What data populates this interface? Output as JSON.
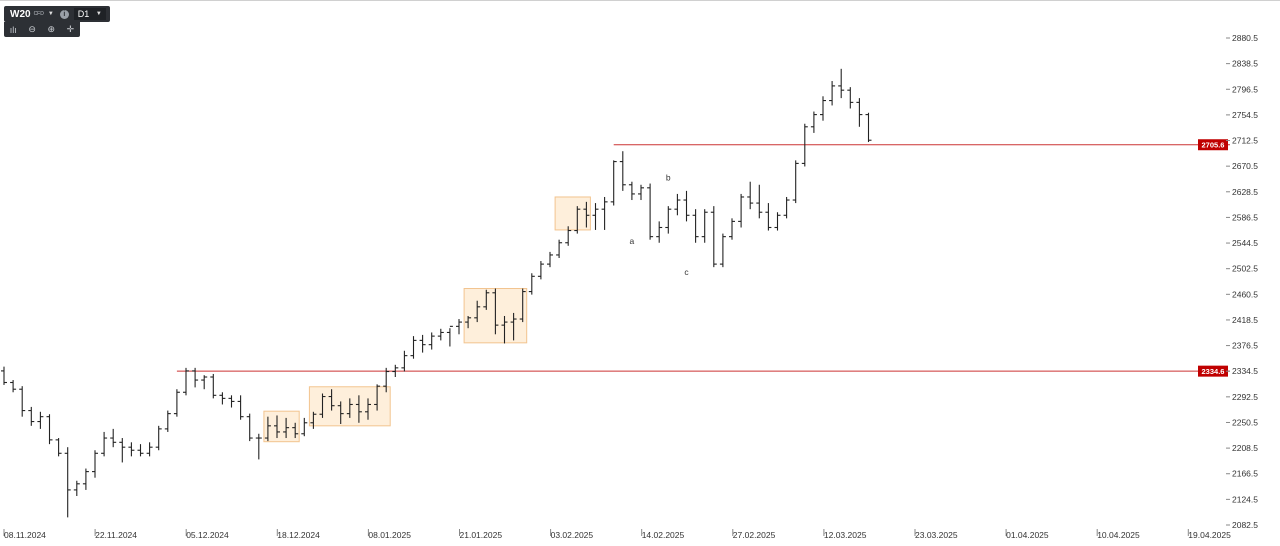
{
  "toolbar": {
    "symbol": "W20",
    "symbol_type": "CFD",
    "timeframe": "D1",
    "icons": [
      "caret-down-icon",
      "info-icon",
      "bar-style-icon",
      "zoom-out-icon",
      "zoom-in-icon",
      "crosshair-icon"
    ]
  },
  "colors": {
    "bar": "#222222",
    "level_line": "#cc3333",
    "level_badge": "#c00000",
    "box_fill": "#fde9cf",
    "box_stroke": "#f2c48f",
    "axis_text": "#333333"
  },
  "chart_data": {
    "type": "ohlc",
    "ylim": [
      2082.5,
      2890
    ],
    "y_ticks": [
      "2880.5",
      "2838.5",
      "2796.5",
      "2754.5",
      "2712.5",
      "2670.5",
      "2628.5",
      "2586.5",
      "2544.5",
      "2502.5",
      "2460.5",
      "2418.5",
      "2376.5",
      "2334.5",
      "2292.5",
      "2250.5",
      "2208.5",
      "2166.5",
      "2124.5",
      "2082.5"
    ],
    "x_ticks": [
      "08.11.2024",
      "22.11.2024",
      "05.12.2024",
      "18.12.2024",
      "08.01.2025",
      "21.01.2025",
      "03.02.2025",
      "14.02.2025",
      "27.02.2025",
      "12.03.2025",
      "23.03.2025",
      "01.04.2025",
      "10.04.2025",
      "19.04.2025"
    ],
    "levels": [
      {
        "label": "2705.6",
        "value": 2705.6,
        "from_bar": 67
      },
      {
        "label": "2334.6",
        "value": 2334.6,
        "from_bar": 19
      }
    ],
    "annotations": [
      {
        "label": "a",
        "bar": 69,
        "value": 2543
      },
      {
        "label": "b",
        "bar": 73,
        "value": 2647
      },
      {
        "label": "c",
        "bar": 75,
        "value": 2492
      }
    ],
    "boxes": [
      {
        "from_bar": 29,
        "to_bar": 32,
        "low": 2219,
        "high": 2269
      },
      {
        "from_bar": 34,
        "to_bar": 42,
        "low": 2245,
        "high": 2309
      },
      {
        "from_bar": 51,
        "to_bar": 57,
        "low": 2381,
        "high": 2470
      },
      {
        "from_bar": 61,
        "to_bar": 64,
        "low": 2566,
        "high": 2620
      }
    ],
    "bars": [
      [
        2335,
        2342,
        2312,
        2316
      ],
      [
        2316,
        2320,
        2300,
        2305
      ],
      [
        2305,
        2310,
        2260,
        2270
      ],
      [
        2270,
        2276,
        2245,
        2252
      ],
      [
        2252,
        2268,
        2240,
        2260
      ],
      [
        2260,
        2264,
        2215,
        2222
      ],
      [
        2222,
        2225,
        2195,
        2200
      ],
      [
        2200,
        2210,
        2095,
        2140
      ],
      [
        2140,
        2155,
        2130,
        2150
      ],
      [
        2150,
        2175,
        2140,
        2170
      ],
      [
        2170,
        2205,
        2160,
        2200
      ],
      [
        2200,
        2235,
        2195,
        2225
      ],
      [
        2225,
        2240,
        2210,
        2218
      ],
      [
        2218,
        2225,
        2185,
        2210
      ],
      [
        2210,
        2218,
        2195,
        2205
      ],
      [
        2205,
        2215,
        2195,
        2200
      ],
      [
        2200,
        2218,
        2195,
        2210
      ],
      [
        2210,
        2245,
        2205,
        2240
      ],
      [
        2240,
        2270,
        2235,
        2265
      ],
      [
        2265,
        2305,
        2260,
        2300
      ],
      [
        2300,
        2340,
        2295,
        2335
      ],
      [
        2335,
        2340,
        2308,
        2320
      ],
      [
        2320,
        2328,
        2305,
        2325
      ],
      [
        2325,
        2330,
        2290,
        2295
      ],
      [
        2295,
        2300,
        2280,
        2290
      ],
      [
        2290,
        2295,
        2275,
        2285
      ],
      [
        2285,
        2295,
        2255,
        2260
      ],
      [
        2260,
        2265,
        2220,
        2225
      ],
      [
        2225,
        2232,
        2190,
        2225
      ],
      [
        2225,
        2260,
        2220,
        2245
      ],
      [
        2245,
        2262,
        2225,
        2235
      ],
      [
        2235,
        2258,
        2225,
        2242
      ],
      [
        2242,
        2250,
        2225,
        2232
      ],
      [
        2232,
        2258,
        2228,
        2250
      ],
      [
        2250,
        2268,
        2240,
        2264
      ],
      [
        2264,
        2298,
        2258,
        2293
      ],
      [
        2293,
        2305,
        2270,
        2278
      ],
      [
        2278,
        2285,
        2248,
        2265
      ],
      [
        2265,
        2290,
        2258,
        2280
      ],
      [
        2280,
        2295,
        2250,
        2268
      ],
      [
        2268,
        2290,
        2255,
        2280
      ],
      [
        2280,
        2313,
        2270,
        2310
      ],
      [
        2310,
        2340,
        2300,
        2334
      ],
      [
        2334,
        2345,
        2325,
        2340
      ],
      [
        2340,
        2368,
        2334,
        2360
      ],
      [
        2360,
        2392,
        2355,
        2385
      ],
      [
        2385,
        2394,
        2365,
        2378
      ],
      [
        2378,
        2398,
        2370,
        2392
      ],
      [
        2392,
        2404,
        2385,
        2398
      ],
      [
        2398,
        2405,
        2375,
        2408
      ],
      [
        2408,
        2420,
        2395,
        2415
      ],
      [
        2415,
        2425,
        2405,
        2422
      ],
      [
        2422,
        2450,
        2415,
        2440
      ],
      [
        2440,
        2468,
        2435,
        2463
      ],
      [
        2463,
        2470,
        2395,
        2410
      ],
      [
        2410,
        2425,
        2380,
        2415
      ],
      [
        2415,
        2430,
        2385,
        2420
      ],
      [
        2420,
        2470,
        2415,
        2465
      ],
      [
        2465,
        2495,
        2460,
        2490
      ],
      [
        2490,
        2515,
        2485,
        2510
      ],
      [
        2510,
        2530,
        2505,
        2525
      ],
      [
        2525,
        2550,
        2520,
        2545
      ],
      [
        2545,
        2572,
        2540,
        2565
      ],
      [
        2565,
        2605,
        2560,
        2600
      ],
      [
        2600,
        2612,
        2570,
        2590
      ],
      [
        2590,
        2610,
        2566,
        2600
      ],
      [
        2600,
        2620,
        2566,
        2612
      ],
      [
        2612,
        2680,
        2606,
        2678
      ],
      [
        2678,
        2695,
        2630,
        2640
      ],
      [
        2640,
        2645,
        2615,
        2625
      ],
      [
        2625,
        2640,
        2615,
        2635
      ],
      [
        2635,
        2642,
        2550,
        2555
      ],
      [
        2555,
        2580,
        2545,
        2570
      ],
      [
        2570,
        2605,
        2560,
        2600
      ],
      [
        2600,
        2625,
        2590,
        2615
      ],
      [
        2615,
        2630,
        2580,
        2590
      ],
      [
        2590,
        2600,
        2545,
        2555
      ],
      [
        2555,
        2600,
        2545,
        2595
      ],
      [
        2595,
        2605,
        2505,
        2510
      ],
      [
        2510,
        2560,
        2505,
        2555
      ],
      [
        2555,
        2585,
        2550,
        2580
      ],
      [
        2580,
        2625,
        2570,
        2620
      ],
      [
        2620,
        2645,
        2600,
        2610
      ],
      [
        2610,
        2640,
        2585,
        2595
      ],
      [
        2595,
        2610,
        2565,
        2570
      ],
      [
        2570,
        2595,
        2565,
        2590
      ],
      [
        2590,
        2620,
        2585,
        2615
      ],
      [
        2615,
        2680,
        2610,
        2675
      ],
      [
        2675,
        2740,
        2670,
        2735
      ],
      [
        2735,
        2760,
        2725,
        2755
      ],
      [
        2755,
        2785,
        2745,
        2778
      ],
      [
        2778,
        2810,
        2770,
        2802
      ],
      [
        2802,
        2830,
        2782,
        2795
      ],
      [
        2795,
        2800,
        2765,
        2775
      ],
      [
        2775,
        2782,
        2735,
        2755
      ],
      [
        2755,
        2758,
        2710,
        2713
      ]
    ]
  }
}
